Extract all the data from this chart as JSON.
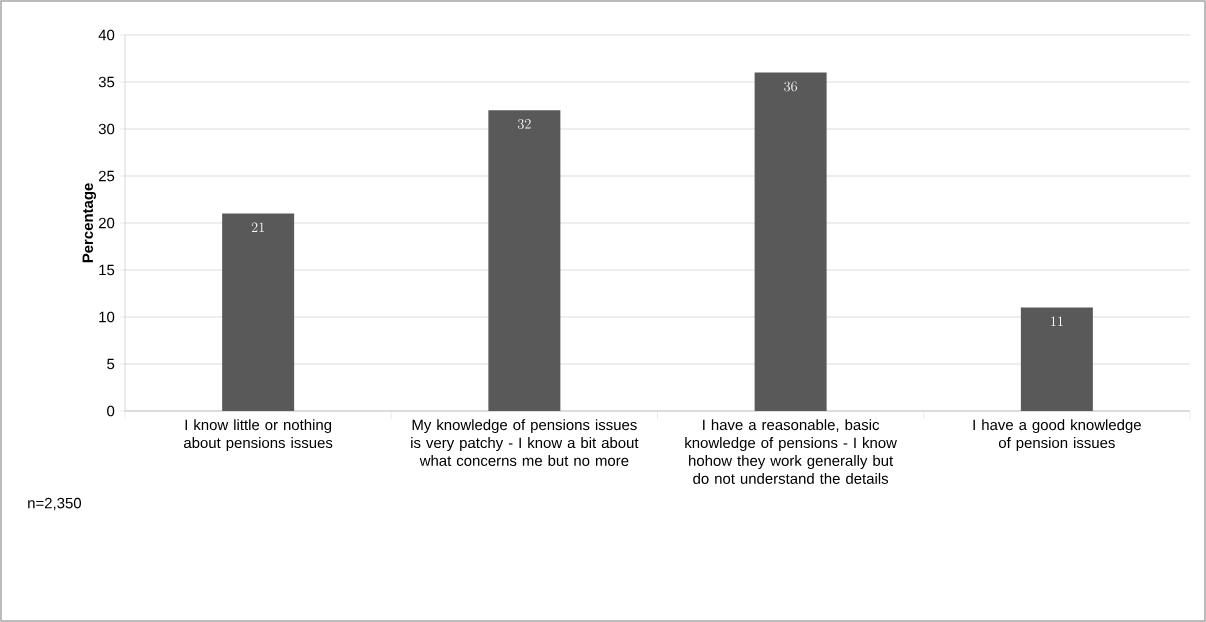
{
  "chart_data": {
    "type": "bar",
    "ylabel": "Percentage",
    "categories": [
      "I know little or nothing about pensions issues",
      "My knowledge of pensions issues is very patchy - I know a bit about what concerns me but no more",
      "I have a reasonable, basic knowledge of pensions - I know hohow they work generally but do not understand the details",
      "I have a good knowledge of pension issues"
    ],
    "values": [
      21,
      32,
      36,
      11
    ],
    "color": "#595959",
    "data_labels": true,
    "ylim": [
      0,
      40
    ],
    "yticks": [
      0,
      5,
      10,
      15,
      20,
      25,
      30,
      35,
      40
    ],
    "grid": "y",
    "annotations": [
      "n=2,350"
    ]
  }
}
